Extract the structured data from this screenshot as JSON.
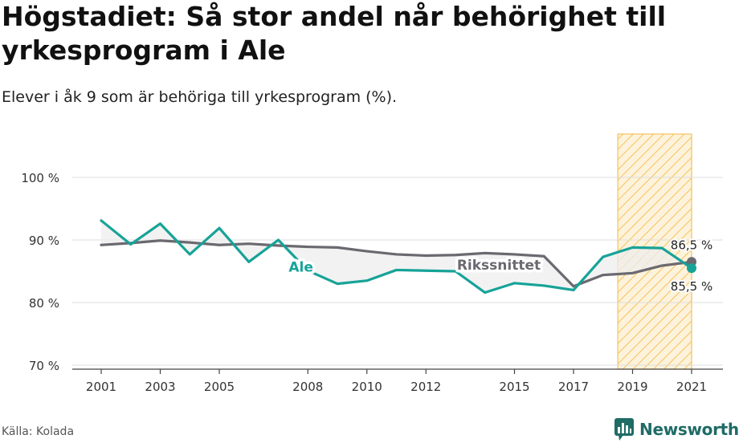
{
  "title": "Högstadiet: Så stor andel når behörighet till yrkesprogram i Ale",
  "subtitle": "Elever i åk 9 som är behöriga till yrkesprogram (%).",
  "source": "Källa: Kolada",
  "brand": "Newsworthy",
  "colors": {
    "ale": "#17a398",
    "riket": "#6b6970",
    "highlight": "#f6c25a",
    "grid": "#dcdcdc",
    "brand": "#1f6b66"
  },
  "chart_data": {
    "type": "line",
    "xlim": [
      2000.5,
      2021.5
    ],
    "ylim": [
      70,
      107
    ],
    "y_ticks": [
      70,
      80,
      90,
      100
    ],
    "y_tick_labels": [
      "70 %",
      "80 %",
      "90 %",
      "100 %"
    ],
    "x_ticks": [
      2001,
      2003,
      2005,
      2008,
      2010,
      2012,
      2015,
      2017,
      2019,
      2021
    ],
    "x_tick_labels": [
      "2001",
      "2003",
      "2005",
      "2008",
      "2010",
      "2012",
      "2015",
      "2017",
      "2019",
      "2021"
    ],
    "highlight_range": [
      2018.5,
      2021
    ],
    "x": [
      2001,
      2002,
      2003,
      2004,
      2005,
      2006,
      2007,
      2008,
      2009,
      2010,
      2011,
      2012,
      2013,
      2014,
      2015,
      2016,
      2017,
      2018,
      2019,
      2020,
      2021
    ],
    "series": [
      {
        "key": "ale",
        "name": "Ale",
        "values": [
          93.1,
          89.3,
          92.6,
          87.7,
          91.9,
          86.5,
          90.0,
          85.1,
          83.0,
          83.5,
          85.2,
          85.1,
          85.0,
          81.6,
          83.1,
          82.7,
          82.0,
          87.3,
          88.8,
          88.7,
          85.5
        ],
        "end_label": "85,5 %"
      },
      {
        "key": "riket",
        "name": "Rikssnittet",
        "values": [
          89.2,
          89.5,
          89.9,
          89.6,
          89.2,
          89.4,
          89.1,
          88.9,
          88.8,
          88.2,
          87.7,
          87.5,
          87.6,
          87.9,
          87.7,
          87.4,
          82.6,
          84.4,
          84.7,
          85.9,
          86.5
        ],
        "end_label": "86,5 %"
      }
    ]
  }
}
